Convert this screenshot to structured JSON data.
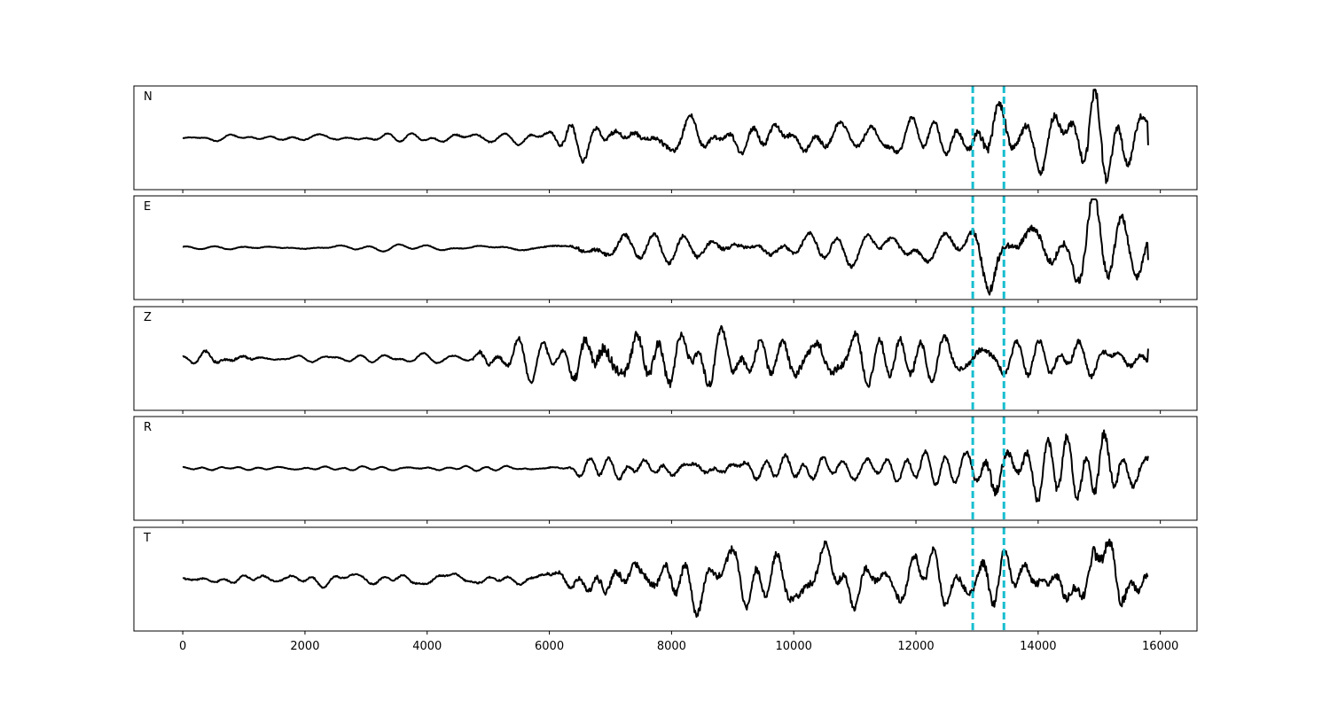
{
  "chart_data": {
    "type": "line",
    "xlim": [
      -800,
      16600
    ],
    "x_ticks": [
      0,
      2000,
      4000,
      6000,
      8000,
      10000,
      12000,
      14000,
      16000
    ],
    "x_tick_labels": [
      "0",
      "2000",
      "4000",
      "6000",
      "8000",
      "10000",
      "12000",
      "14000",
      "16000"
    ],
    "x_range": [
      0,
      15800
    ],
    "y_ticks_shown": false,
    "grid": false,
    "line_color": "#000000",
    "marker_color": "#17becf",
    "markers": [
      12930,
      13440
    ],
    "panels": [
      {
        "label": "N",
        "ylim": [
          -1.05,
          1.05
        ],
        "baseline": 0.0,
        "end_value": -0.15,
        "envelope": [
          [
            0,
            0.05
          ],
          [
            4000,
            0.08
          ],
          [
            6000,
            0.14
          ],
          [
            6300,
            0.34
          ],
          [
            12800,
            0.35
          ],
          [
            13300,
            0.95
          ],
          [
            13700,
            0.45
          ],
          [
            14700,
            0.6
          ],
          [
            14900,
            0.95
          ],
          [
            15800,
            0.45
          ]
        ]
      },
      {
        "label": "E",
        "ylim": [
          -1.05,
          1.05
        ],
        "baseline": 0.0,
        "end_value": -0.25,
        "envelope": [
          [
            0,
            0.04
          ],
          [
            5000,
            0.05
          ],
          [
            6300,
            0.1
          ],
          [
            6500,
            0.28
          ],
          [
            12800,
            0.3
          ],
          [
            13200,
            0.9
          ],
          [
            13500,
            0.5
          ],
          [
            14500,
            0.55
          ],
          [
            14900,
            0.9
          ],
          [
            15800,
            0.45
          ]
        ]
      },
      {
        "label": "Z",
        "ylim": [
          -1.05,
          1.05
        ],
        "baseline": 0.0,
        "end_value": 0.2,
        "envelope": [
          [
            0,
            0.06
          ],
          [
            500,
            0.2
          ],
          [
            1100,
            0.15
          ],
          [
            1300,
            0.06
          ],
          [
            4700,
            0.08
          ],
          [
            4900,
            0.35
          ],
          [
            6200,
            0.3
          ],
          [
            6600,
            0.9
          ],
          [
            6900,
            0.95
          ],
          [
            8500,
            0.6
          ],
          [
            12000,
            0.5
          ],
          [
            12800,
            0.35
          ],
          [
            13500,
            0.45
          ],
          [
            15800,
            0.3
          ]
        ]
      },
      {
        "label": "R",
        "ylim": [
          -1.05,
          1.05
        ],
        "baseline": 0.0,
        "end_value": 0.25,
        "envelope": [
          [
            0,
            0.04
          ],
          [
            5500,
            0.05
          ],
          [
            6300,
            0.08
          ],
          [
            6600,
            0.25
          ],
          [
            12800,
            0.25
          ],
          [
            13300,
            0.9
          ],
          [
            13600,
            0.5
          ],
          [
            14700,
            0.6
          ],
          [
            14900,
            0.9
          ],
          [
            15800,
            0.4
          ]
        ]
      },
      {
        "label": "T",
        "ylim": [
          -1.05,
          1.05
        ],
        "baseline": 0.0,
        "end_value": 0.05,
        "envelope": [
          [
            0,
            0.1
          ],
          [
            5500,
            0.12
          ],
          [
            6300,
            0.28
          ],
          [
            6700,
            0.55
          ],
          [
            12800,
            0.5
          ],
          [
            13200,
            0.75
          ],
          [
            13700,
            0.55
          ],
          [
            14700,
            0.7
          ],
          [
            14900,
            1.0
          ],
          [
            15800,
            0.55
          ]
        ]
      }
    ]
  }
}
